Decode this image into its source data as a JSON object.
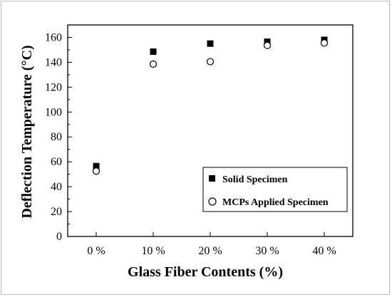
{
  "chart_data": {
    "type": "scatter",
    "categories": [
      "0 %",
      "10 %",
      "20 %",
      "30 %",
      "40 %"
    ],
    "series": [
      {
        "name": "Solid Specimen",
        "marker": "filled-square",
        "color": "#000000",
        "values": [
          56.5,
          148.5,
          155.0,
          156.5,
          158.0
        ]
      },
      {
        "name": "MCPs Applied Specimen",
        "marker": "open-circle",
        "color": "#000000",
        "values": [
          52.5,
          138.5,
          140.5,
          153.5,
          155.5
        ]
      }
    ],
    "xlabel": "Glass Fiber Contents (%)",
    "ylabel": "Deflection Temperature (°C)",
    "ylim": [
      0,
      170
    ],
    "yticks": [
      0,
      20,
      40,
      60,
      80,
      100,
      120,
      140,
      160
    ],
    "grid": false,
    "legend_position": "bottom-right"
  }
}
